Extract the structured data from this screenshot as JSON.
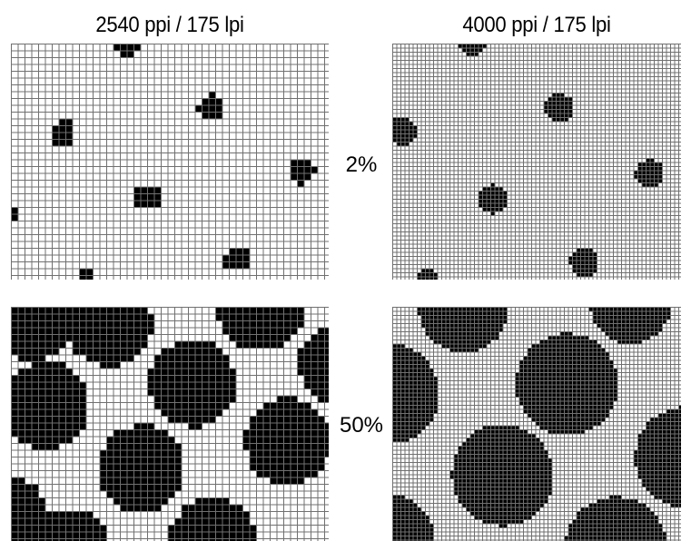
{
  "columns": [
    {
      "label": "2540 ppi / 175 lpi"
    },
    {
      "label": "4000 ppi / 175 lpi"
    }
  ],
  "rows": [
    {
      "label": "2%"
    },
    {
      "label": "50%"
    }
  ],
  "colors": {
    "dot": "#000000",
    "grid": "#707070",
    "background": "#ffffff"
  }
}
